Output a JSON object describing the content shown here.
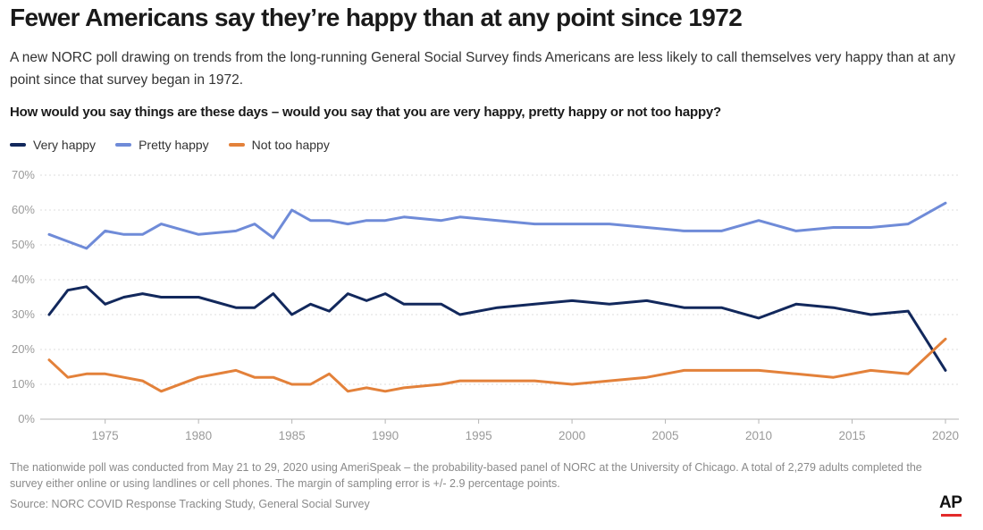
{
  "header": {
    "title": "Fewer Americans say they’re happy than at any point since 1972",
    "subtitle": "A new NORC poll drawing on trends from the long-running General Social Survey finds Americans are less likely to call themselves very happy than at any point since that survey began in 1972.",
    "question": "How would you say things are these days – would you say that you are very happy, pretty happy or not too happy?"
  },
  "footer": {
    "note": "The nationwide poll was conducted from May 21 to 29, 2020 using AmeriSpeak – the probability-based panel of NORC at the University of Chicago. A total of 2,279 adults completed the survey either online or using landlines or cell phones. The margin of sampling error is +/- 2.9 percentage points.",
    "source": "Source: NORC COVID Response Tracking Study, General Social Survey",
    "logo": "AP",
    "logo_accent": "#e22a2a"
  },
  "chart_data": {
    "type": "line",
    "title": "Fewer Americans say they’re happy than at any point since 1972",
    "xlabel": "",
    "ylabel": "",
    "xlim": [
      1972,
      2020
    ],
    "ylim": [
      0,
      70
    ],
    "yticks": [
      0,
      10,
      20,
      30,
      40,
      50,
      60,
      70
    ],
    "ytick_labels": [
      "0%",
      "10%",
      "20%",
      "30%",
      "40%",
      "50%",
      "60%",
      "70%"
    ],
    "xticks": [
      1975,
      1980,
      1985,
      1990,
      1995,
      2000,
      2005,
      2010,
      2015,
      2020
    ],
    "xtick_labels": [
      "1975",
      "1980",
      "1985",
      "1990",
      "1995",
      "2000",
      "2005",
      "2010",
      "2015",
      "2020"
    ],
    "grid": true,
    "legend_position": "top-left",
    "x": [
      1972,
      1973,
      1974,
      1975,
      1976,
      1977,
      1978,
      1980,
      1982,
      1983,
      1984,
      1985,
      1986,
      1987,
      1988,
      1989,
      1990,
      1991,
      1993,
      1994,
      1996,
      1998,
      2000,
      2002,
      2004,
      2006,
      2008,
      2010,
      2012,
      2014,
      2016,
      2018,
      2020
    ],
    "series": [
      {
        "name": "Very happy",
        "color": "#12285c",
        "values": [
          30,
          37,
          38,
          33,
          35,
          36,
          35,
          35,
          32,
          32,
          36,
          30,
          33,
          31,
          36,
          34,
          36,
          33,
          33,
          30,
          32,
          33,
          34,
          33,
          34,
          32,
          32,
          29,
          33,
          32,
          30,
          31,
          14
        ]
      },
      {
        "name": "Pretty happy",
        "color": "#6f8bd8",
        "values": [
          53,
          51,
          49,
          54,
          53,
          53,
          56,
          53,
          54,
          56,
          52,
          60,
          57,
          57,
          56,
          57,
          57,
          58,
          57,
          58,
          57,
          56,
          56,
          56,
          55,
          54,
          54,
          57,
          54,
          55,
          55,
          56,
          62
        ]
      },
      {
        "name": "Not too happy",
        "color": "#e3813a",
        "values": [
          17,
          12,
          13,
          13,
          12,
          11,
          8,
          12,
          14,
          12,
          12,
          10,
          10,
          13,
          8,
          9,
          8,
          9,
          10,
          11,
          11,
          11,
          10,
          11,
          12,
          14,
          14,
          14,
          13,
          12,
          14,
          13,
          23
        ]
      }
    ]
  }
}
